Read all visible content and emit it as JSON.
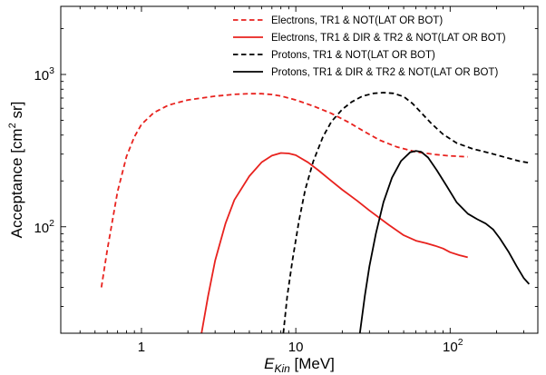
{
  "chart_data": {
    "type": "line",
    "title": "",
    "xlabel": {
      "main": "E",
      "sub": "Kin",
      "unit": " [MeV]"
    },
    "ylabel": {
      "main": "Acceptance [cm",
      "sup": "2",
      "unit": " sr]"
    },
    "xscale": "log",
    "yscale": "log",
    "xlim": [
      0.3,
      370
    ],
    "ylim": [
      20,
      2800
    ],
    "x_ticks": [
      {
        "value": 1,
        "label": "1"
      },
      {
        "value": 10,
        "label": "10"
      },
      {
        "value": 100,
        "label": "10",
        "sup": "2"
      }
    ],
    "y_ticks": [
      {
        "value": 100,
        "label": "10",
        "sup": "2"
      },
      {
        "value": 1000,
        "label": "10",
        "sup": "3"
      }
    ],
    "grid": false,
    "legend": {
      "position": "top-right"
    },
    "series": [
      {
        "name": "Electrons, TR1 & NOT(LAT OR BOT)",
        "color": "#e8221e",
        "dash": "dashed",
        "points": [
          [
            0.55,
            40
          ],
          [
            0.6,
            70
          ],
          [
            0.7,
            170
          ],
          [
            0.8,
            290
          ],
          [
            0.9,
            390
          ],
          [
            1.0,
            470
          ],
          [
            1.2,
            560
          ],
          [
            1.5,
            630
          ],
          [
            2.0,
            680
          ],
          [
            3.0,
            720
          ],
          [
            4.0,
            740
          ],
          [
            5.0,
            748
          ],
          [
            6.0,
            748
          ],
          [
            7.0,
            738
          ],
          [
            8.0,
            722
          ],
          [
            10.0,
            680
          ],
          [
            13.0,
            620
          ],
          [
            17.0,
            555
          ],
          [
            22.0,
            485
          ],
          [
            28.0,
            420
          ],
          [
            35.0,
            370
          ],
          [
            45.0,
            335
          ],
          [
            60.0,
            310
          ],
          [
            80.0,
            298
          ],
          [
            100.0,
            292
          ],
          [
            130.0,
            288
          ]
        ]
      },
      {
        "name": "Electrons, TR1 & DIR & TR2 & NOT(LAT OR BOT)",
        "color": "#e8221e",
        "dash": "solid",
        "points": [
          [
            2.45,
            20
          ],
          [
            2.7,
            35
          ],
          [
            3.0,
            60
          ],
          [
            3.5,
            105
          ],
          [
            4.0,
            150
          ],
          [
            5.0,
            215
          ],
          [
            6.0,
            265
          ],
          [
            7.0,
            293
          ],
          [
            8.0,
            305
          ],
          [
            9.0,
            303
          ],
          [
            10.0,
            295
          ],
          [
            12.0,
            265
          ],
          [
            14.0,
            235
          ],
          [
            17.0,
            200
          ],
          [
            20.0,
            175
          ],
          [
            25.0,
            148
          ],
          [
            30.0,
            128
          ],
          [
            40.0,
            103
          ],
          [
            50.0,
            88
          ],
          [
            60.0,
            81
          ],
          [
            70.0,
            78
          ],
          [
            80.0,
            75
          ],
          [
            90.0,
            72
          ],
          [
            100.0,
            68
          ],
          [
            115.0,
            65
          ],
          [
            130.0,
            63
          ]
        ]
      },
      {
        "name": "Protons, TR1 & NOT(LAT OR BOT)",
        "color": "#000000",
        "dash": "dashed",
        "points": [
          [
            8.3,
            20
          ],
          [
            8.8,
            35
          ],
          [
            9.5,
            60
          ],
          [
            10.5,
            110
          ],
          [
            11.5,
            175
          ],
          [
            13.0,
            270
          ],
          [
            15.0,
            390
          ],
          [
            17.0,
            490
          ],
          [
            20.0,
            590
          ],
          [
            23.0,
            660
          ],
          [
            27.0,
            720
          ],
          [
            32.0,
            752
          ],
          [
            37.0,
            760
          ],
          [
            43.0,
            752
          ],
          [
            50.0,
            715
          ],
          [
            57.0,
            645
          ],
          [
            65.0,
            560
          ],
          [
            75.0,
            480
          ],
          [
            90.0,
            405
          ],
          [
            110.0,
            355
          ],
          [
            140.0,
            325
          ],
          [
            180.0,
            305
          ],
          [
            230.0,
            285
          ],
          [
            280.0,
            270
          ],
          [
            330.0,
            262
          ]
        ]
      },
      {
        "name": "Protons, TR1 & DIR & TR2 & NOT(LAT OR BOT)",
        "color": "#000000",
        "dash": "solid",
        "points": [
          [
            26.0,
            20
          ],
          [
            28.0,
            35
          ],
          [
            30.0,
            55
          ],
          [
            33.0,
            90
          ],
          [
            37.0,
            145
          ],
          [
            42.0,
            210
          ],
          [
            48.0,
            270
          ],
          [
            55.0,
            308
          ],
          [
            60.0,
            315
          ],
          [
            65.0,
            310
          ],
          [
            72.0,
            285
          ],
          [
            82.0,
            235
          ],
          [
            95.0,
            185
          ],
          [
            110.0,
            145
          ],
          [
            130.0,
            122
          ],
          [
            150.0,
            112
          ],
          [
            170.0,
            105
          ],
          [
            190.0,
            96
          ],
          [
            210.0,
            84
          ],
          [
            240.0,
            68
          ],
          [
            270.0,
            55
          ],
          [
            300.0,
            46
          ],
          [
            325.0,
            42
          ]
        ]
      }
    ]
  }
}
